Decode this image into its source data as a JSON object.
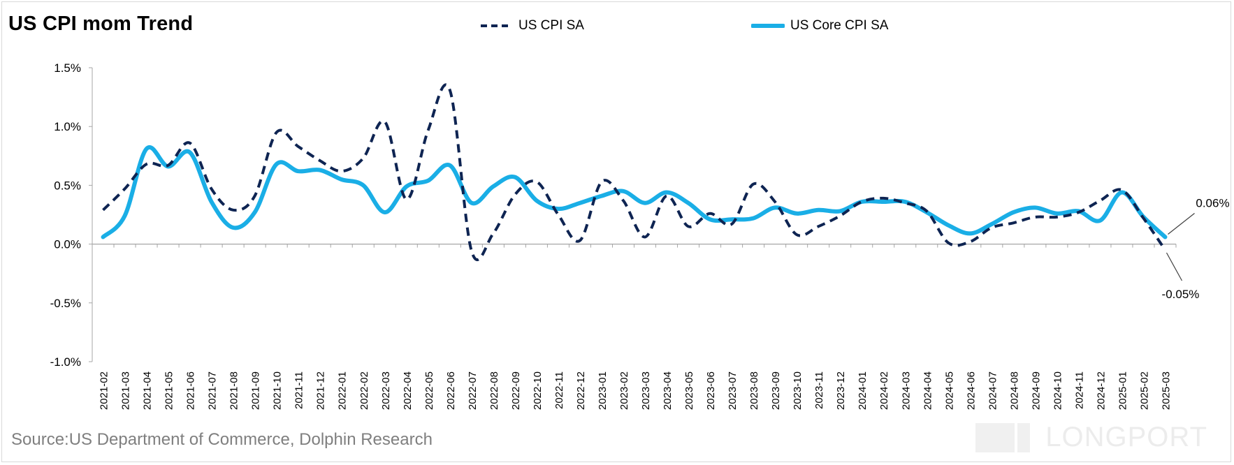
{
  "title": "US CPI mom Trend",
  "source": "Source:US Department of Commerce, Dolphin Research",
  "watermark": "LONGPORT",
  "chart_data": {
    "type": "line",
    "title": "US CPI mom Trend",
    "x": [
      "2021-02",
      "2021-03",
      "2021-04",
      "2021-05",
      "2021-06",
      "2021-07",
      "2021-08",
      "2021-09",
      "2021-10",
      "2021-11",
      "2021-12",
      "2022-01",
      "2022-02",
      "2022-03",
      "2022-04",
      "2022-05",
      "2022-06",
      "2022-07",
      "2022-08",
      "2022-09",
      "2022-10",
      "2022-11",
      "2022-12",
      "2023-01",
      "2023-02",
      "2023-03",
      "2023-04",
      "2023-05",
      "2023-06",
      "2023-07",
      "2023-08",
      "2023-09",
      "2023-10",
      "2023-11",
      "2023-12",
      "2024-01",
      "2024-02",
      "2024-03",
      "2024-04",
      "2024-05",
      "2024-06",
      "2024-07",
      "2024-08",
      "2024-09",
      "2024-10",
      "2024-11",
      "2024-12",
      "2025-01",
      "2025-02",
      "2025-03"
    ],
    "ylim": [
      -1.0,
      1.5
    ],
    "yticks": [
      "-1.0%",
      "-0.5%",
      "0.0%",
      "0.5%",
      "1.0%",
      "1.5%"
    ],
    "ytick_values": [
      -1.0,
      -0.5,
      0.0,
      0.5,
      1.0,
      1.5
    ],
    "legend_position": "top",
    "series": [
      {
        "name": "US CPI SA",
        "style": "dashed",
        "color": "#0e2452",
        "values": [
          0.29,
          0.47,
          0.68,
          0.67,
          0.86,
          0.47,
          0.29,
          0.41,
          0.95,
          0.83,
          0.71,
          0.62,
          0.73,
          1.04,
          0.38,
          0.97,
          1.31,
          -0.06,
          0.09,
          0.42,
          0.53,
          0.25,
          0.03,
          0.53,
          0.37,
          0.06,
          0.41,
          0.15,
          0.26,
          0.17,
          0.51,
          0.36,
          0.08,
          0.15,
          0.24,
          0.36,
          0.39,
          0.35,
          0.28,
          0.01,
          0.02,
          0.14,
          0.18,
          0.23,
          0.23,
          0.27,
          0.37,
          0.46,
          0.22,
          -0.05
        ]
      },
      {
        "name": "US Core CPI SA",
        "style": "solid",
        "color": "#1aaee6",
        "values": [
          0.06,
          0.24,
          0.81,
          0.66,
          0.78,
          0.36,
          0.14,
          0.27,
          0.68,
          0.62,
          0.63,
          0.55,
          0.5,
          0.27,
          0.49,
          0.54,
          0.67,
          0.35,
          0.49,
          0.57,
          0.37,
          0.3,
          0.35,
          0.41,
          0.45,
          0.35,
          0.44,
          0.35,
          0.21,
          0.21,
          0.22,
          0.31,
          0.26,
          0.29,
          0.28,
          0.36,
          0.36,
          0.36,
          0.27,
          0.16,
          0.09,
          0.17,
          0.27,
          0.31,
          0.26,
          0.28,
          0.2,
          0.44,
          0.23,
          0.06
        ]
      }
    ],
    "annotations": [
      {
        "text": "0.06%",
        "series": "US Core CPI SA",
        "x": "2025-03",
        "value": 0.06
      },
      {
        "text": "-0.05%",
        "series": "US CPI SA",
        "x": "2025-03",
        "value": -0.05
      }
    ]
  }
}
